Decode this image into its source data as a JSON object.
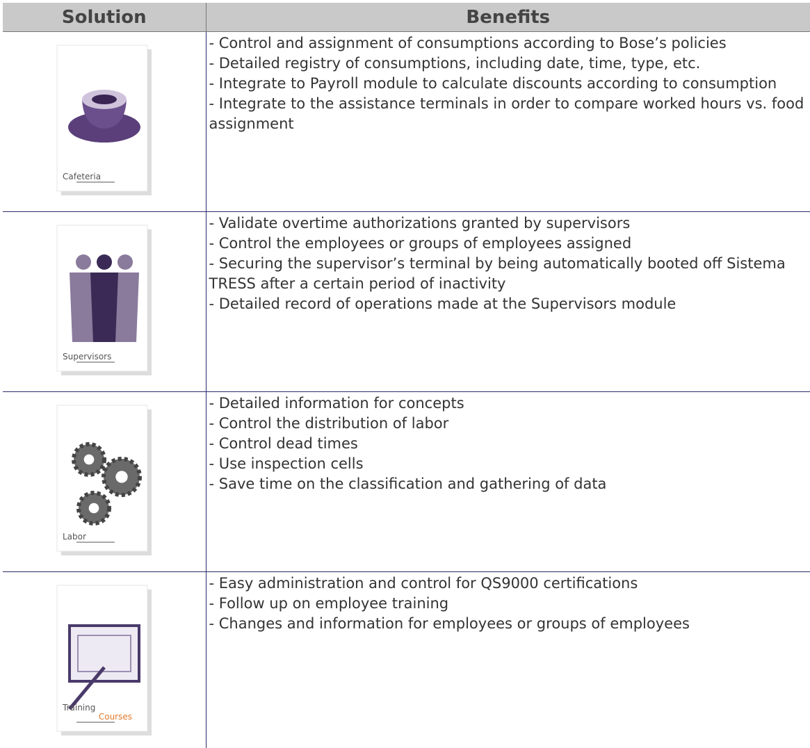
{
  "table": {
    "headers": [
      "Solution",
      "Benefits"
    ],
    "rows": [
      {
        "icon_label": [
          "Cafeteria"
        ],
        "benefits": [
          "- Control and assignment of consumptions according to Bose’s policies",
          "- Detailed registry of consumptions, including date, time, type, etc.",
          "- Integrate to Payroll module to calculate discounts according to consumption",
          "- Integrate to the assistance terminals in order to compare worked hours vs. food assignment"
        ]
      },
      {
        "icon_label": [
          "Supervisors"
        ],
        "benefits": [
          "- Validate overtime authorizations granted by supervisors",
          "- Control the employees or groups of employees assigned",
          "- Securing the supervisor’s terminal by being automatically booted off Sistema TRESS after a certain period of inactivity",
          "- Detailed record of operations made at the Supervisors module"
        ]
      },
      {
        "icon_label": [
          "Labor"
        ],
        "benefits": [
          "- Detailed information for concepts",
          "- Control the distribution of labor",
          "- Control dead times",
          "- Use inspection cells",
          "- Save time on the classification and gathering of data"
        ]
      },
      {
        "icon_label": [
          "Training",
          "Courses"
        ],
        "benefits": [
          "- Easy administration and control for QS9000 certifications",
          "- Follow up on employee training",
          "- Changes and information for employees or groups of employees"
        ]
      }
    ]
  }
}
